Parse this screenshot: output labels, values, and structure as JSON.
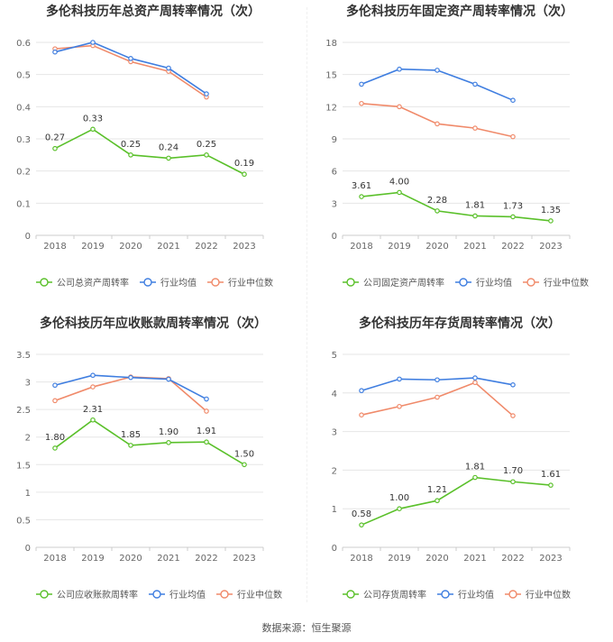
{
  "source_label": "数据来源：恒生聚源",
  "colors": {
    "company": "#5ac02a",
    "avg": "#3f7ee0",
    "median": "#f08a6a",
    "grid": "#e6e6e6",
    "axis": "#cccccc",
    "tick_text": "#666666",
    "title": "#333333"
  },
  "chart_data": [
    {
      "type": "line",
      "title": "多伦科技历年总资产周转率情况（次）",
      "x": [
        "2018",
        "2019",
        "2020",
        "2021",
        "2022",
        "2023"
      ],
      "ylim": [
        0,
        0.6
      ],
      "yticks": [
        "0",
        "0.1",
        "0.2",
        "0.3",
        "0.4",
        "0.5",
        "0.6"
      ],
      "grid": true,
      "legend": "bottom",
      "series": [
        {
          "name": "公司总资产周转率",
          "role": "company",
          "values": [
            0.27,
            0.33,
            0.25,
            0.24,
            0.25,
            0.19
          ],
          "labels": [
            "0.27",
            "0.33",
            "0.25",
            "0.24",
            "0.25",
            "0.19"
          ]
        },
        {
          "name": "行业均值",
          "role": "avg",
          "values": [
            0.57,
            0.6,
            0.55,
            0.52,
            0.44,
            null
          ]
        },
        {
          "name": "行业中位数",
          "role": "median",
          "values": [
            0.58,
            0.59,
            0.54,
            0.51,
            0.43,
            null
          ]
        }
      ]
    },
    {
      "type": "line",
      "title": "多伦科技历年固定资产周转率情况（次）",
      "x": [
        "2018",
        "2019",
        "2020",
        "2021",
        "2022",
        "2023"
      ],
      "ylim": [
        0,
        18
      ],
      "yticks": [
        "0",
        "3",
        "6",
        "9",
        "12",
        "15",
        "18"
      ],
      "grid": true,
      "legend": "bottom",
      "series": [
        {
          "name": "公司固定资产周转率",
          "role": "company",
          "values": [
            3.61,
            4.0,
            2.28,
            1.81,
            1.73,
            1.35
          ],
          "labels": [
            "3.61",
            "4.00",
            "2.28",
            "1.81",
            "1.73",
            "1.35"
          ]
        },
        {
          "name": "行业均值",
          "role": "avg",
          "values": [
            14.1,
            15.5,
            15.4,
            14.1,
            12.6,
            null
          ]
        },
        {
          "name": "行业中位数",
          "role": "median",
          "values": [
            12.3,
            12.0,
            10.4,
            10.0,
            9.2,
            null
          ]
        }
      ]
    },
    {
      "type": "line",
      "title": "多伦科技历年应收账款周转率情况（次）",
      "x": [
        "2018",
        "2019",
        "2020",
        "2021",
        "2022",
        "2023"
      ],
      "ylim": [
        0,
        3.5
      ],
      "yticks": [
        "0",
        "0.5",
        "1",
        "1.5",
        "2",
        "2.5",
        "3",
        "3.5"
      ],
      "grid": true,
      "legend": "bottom",
      "series": [
        {
          "name": "公司应收账款周转率",
          "role": "company",
          "values": [
            1.8,
            2.31,
            1.85,
            1.9,
            1.91,
            1.5
          ],
          "labels": [
            "1.80",
            "2.31",
            "1.85",
            "1.90",
            "1.91",
            "1.50"
          ]
        },
        {
          "name": "行业均值",
          "role": "avg",
          "values": [
            2.94,
            3.12,
            3.08,
            3.05,
            2.69,
            null
          ]
        },
        {
          "name": "行业中位数",
          "role": "median",
          "values": [
            2.66,
            2.91,
            3.09,
            3.06,
            2.47,
            null
          ]
        }
      ]
    },
    {
      "type": "line",
      "title": "多伦科技历年存货周转率情况（次）",
      "x": [
        "2018",
        "2019",
        "2020",
        "2021",
        "2022",
        "2023"
      ],
      "ylim": [
        0,
        5
      ],
      "yticks": [
        "0",
        "1",
        "2",
        "3",
        "4",
        "5"
      ],
      "grid": true,
      "legend": "bottom",
      "series": [
        {
          "name": "公司存货周转率",
          "role": "company",
          "values": [
            0.58,
            1.0,
            1.21,
            1.81,
            1.7,
            1.61
          ],
          "labels": [
            "0.58",
            "1.00",
            "1.21",
            "1.81",
            "1.70",
            "1.61"
          ]
        },
        {
          "name": "行业均值",
          "role": "avg",
          "values": [
            4.06,
            4.36,
            4.34,
            4.39,
            4.21,
            null
          ]
        },
        {
          "name": "行业中位数",
          "role": "median",
          "values": [
            3.43,
            3.65,
            3.89,
            4.27,
            3.41,
            null
          ]
        }
      ]
    }
  ]
}
